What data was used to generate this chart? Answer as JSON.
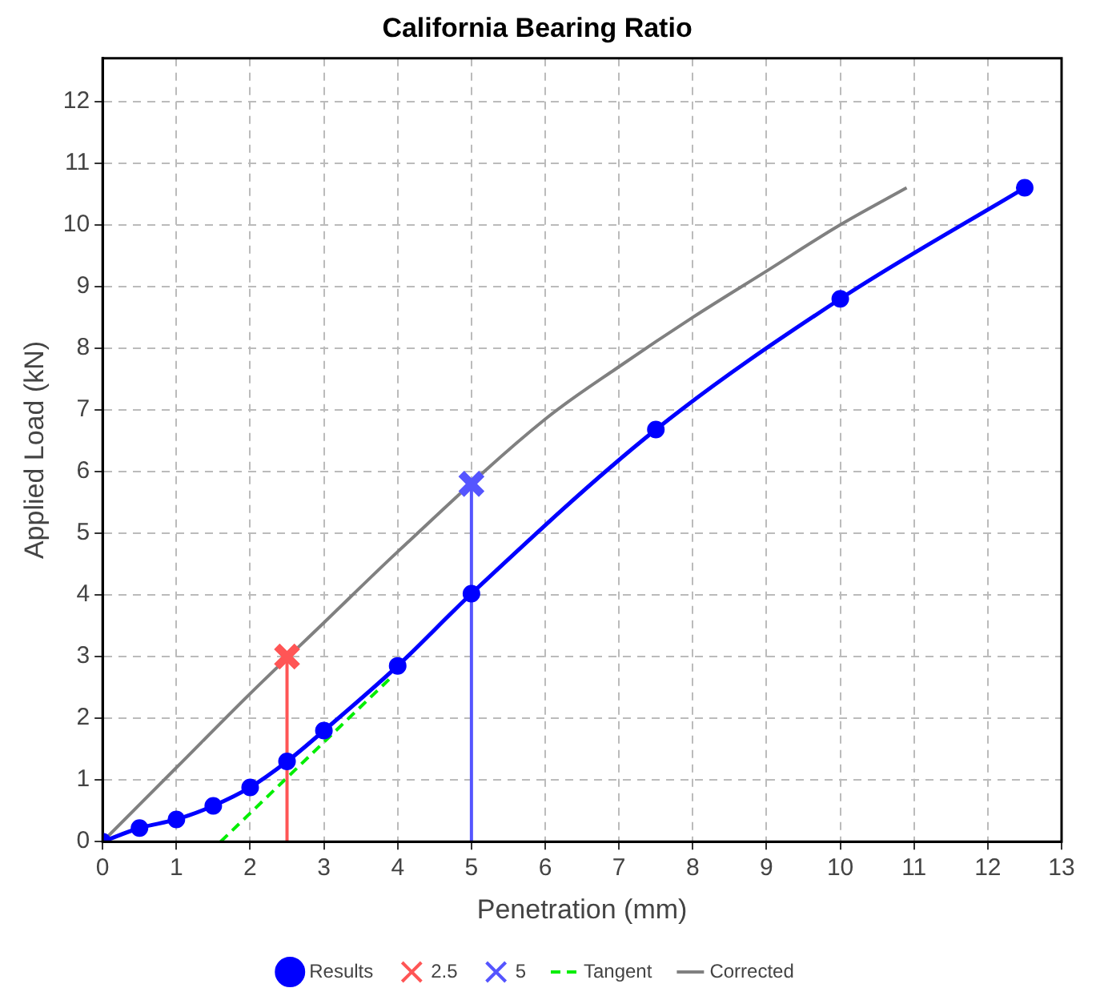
{
  "chart_data": {
    "type": "line",
    "title": "California Bearing Ratio",
    "xlabel": "Penetration (mm)",
    "ylabel": "Applied Load (kN)",
    "xlim": [
      0,
      13
    ],
    "xticks": [
      0,
      1,
      2,
      3,
      4,
      5,
      6,
      7,
      8,
      9,
      10,
      11,
      12,
      13
    ],
    "ylim": [
      0,
      12.7
    ],
    "yticks": [
      0,
      1,
      2,
      3,
      4,
      5,
      6,
      7,
      8,
      9,
      10,
      11,
      12
    ],
    "grid": true,
    "legend": "bottom",
    "series": [
      {
        "name": "Results",
        "color": "#0000ff",
        "marker": "circle",
        "line_style": "solid",
        "x": [
          0,
          0.5,
          1,
          1.5,
          2,
          2.5,
          3,
          4,
          5,
          7.5,
          10,
          12.5
        ],
        "values": [
          0,
          0.22,
          0.36,
          0.58,
          0.88,
          1.3,
          1.8,
          2.85,
          4.02,
          6.68,
          8.8,
          10.6
        ]
      },
      {
        "name": "2.5",
        "color": "#ff5555",
        "marker": "cross",
        "line_style": "solid",
        "x": [
          2.5,
          2.5
        ],
        "values": [
          0,
          3.0
        ]
      },
      {
        "name": "5",
        "color": "#5555ff",
        "marker": "cross",
        "line_style": "solid",
        "x": [
          5,
          5
        ],
        "values": [
          0,
          5.8
        ]
      },
      {
        "name": "Tangent",
        "color": "#00ee00",
        "marker": "none",
        "line_style": "dashed",
        "x": [
          1.6,
          3.9
        ],
        "values": [
          0,
          2.65
        ]
      },
      {
        "name": "Corrected",
        "color": "#808080",
        "marker": "none",
        "line_style": "solid",
        "x": [
          0,
          1,
          2,
          3,
          4,
          6,
          7,
          8,
          9,
          10,
          10.9
        ],
        "values": [
          0,
          1.2,
          2.4,
          3.55,
          4.7,
          6.85,
          7.7,
          8.5,
          9.25,
          10.0,
          10.6
        ]
      }
    ]
  }
}
